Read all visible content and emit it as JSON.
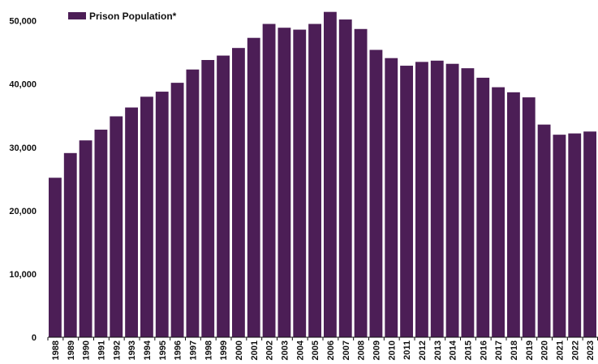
{
  "chart_data": {
    "type": "bar",
    "title": "",
    "xlabel": "",
    "ylabel": "",
    "ylim": [
      0,
      52000
    ],
    "yticks": [
      0,
      10000,
      20000,
      30000,
      40000,
      50000
    ],
    "ytick_labels": [
      "0",
      "10,000",
      "20,000",
      "30,000",
      "40,000",
      "50,000"
    ],
    "grid": false,
    "legend_position": "top-left",
    "categories": [
      "1988",
      "1989",
      "1990",
      "1991",
      "1992",
      "1993",
      "1994",
      "1995",
      "1996",
      "1997",
      "1998",
      "1999",
      "2000",
      "2001",
      "2002",
      "2003",
      "2004",
      "2005",
      "2006",
      "2007",
      "2008",
      "2009",
      "2010",
      "2011",
      "2012",
      "2013",
      "2014",
      "2015",
      "2016",
      "2017",
      "2018",
      "2019",
      "2020",
      "2021",
      "2022",
      "2023"
    ],
    "series": [
      {
        "name": "Prison Population*",
        "color": "#4c1e56",
        "values": [
          25200,
          29100,
          31100,
          32800,
          34900,
          36300,
          38000,
          38800,
          40200,
          42300,
          43800,
          44500,
          45700,
          47300,
          49500,
          48900,
          48600,
          49500,
          51400,
          50200,
          48700,
          45400,
          44100,
          42900,
          43500,
          43700,
          43200,
          42500,
          41000,
          39500,
          38700,
          37900,
          33600,
          32000,
          32200,
          32500
        ]
      }
    ]
  }
}
